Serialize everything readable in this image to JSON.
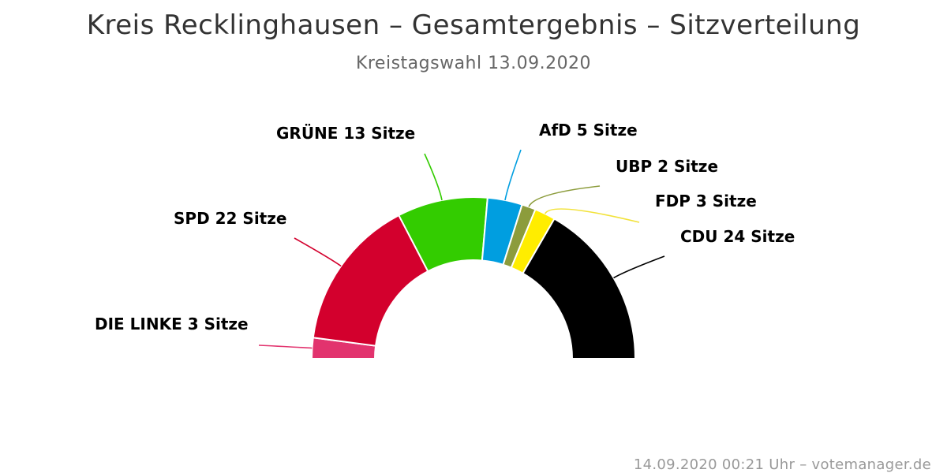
{
  "chart_data": {
    "type": "pie",
    "variant": "semi-circle-donut",
    "title": "Kreis Recklinghausen – Gesamtergebnis – Sitzverteilung",
    "subtitle": "Kreistagswahl 13.09.2020",
    "unit": "Sitze",
    "series": [
      {
        "name": "DIE LINKE",
        "value": 3,
        "color": "#e2336e"
      },
      {
        "name": "SPD",
        "value": 22,
        "color": "#d3002d"
      },
      {
        "name": "GRÜNE",
        "value": 13,
        "color": "#33cc00"
      },
      {
        "name": "AfD",
        "value": 5,
        "color": "#009ee0"
      },
      {
        "name": "UBP",
        "value": 2,
        "color": "#8c9c3c"
      },
      {
        "name": "FDP",
        "value": 3,
        "color": "#ffed00"
      },
      {
        "name": "CDU",
        "value": 24,
        "color": "#000000"
      }
    ]
  },
  "credit": "14.09.2020 00:21 Uhr – votemanager.de"
}
